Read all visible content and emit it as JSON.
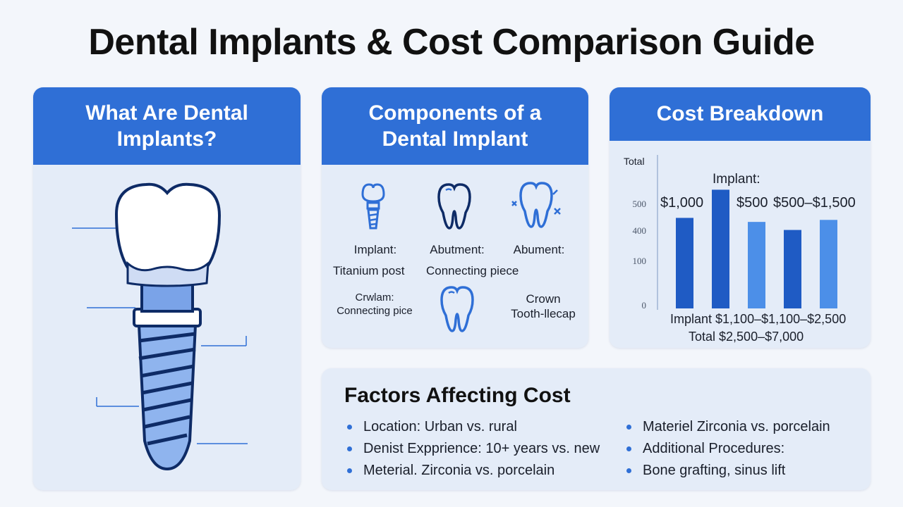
{
  "title": "Dental Implants & Cost Comparison Guide",
  "colors": {
    "accent": "#2f6fd6",
    "card_bg": "#e4ecf8",
    "bar_dark": "#1f5bc4",
    "bar_light": "#4c8fe8"
  },
  "card_what": {
    "header_line1": "What Are Dental",
    "header_line2": "Implants?"
  },
  "card_components": {
    "header_line1": "Components of a",
    "header_line2": "Dental Implant",
    "items": [
      {
        "icon": "implant-post-icon",
        "label": "Implant:",
        "sublabel": "Titanium post"
      },
      {
        "icon": "tooth-outline-icon",
        "label": "Abutment:",
        "sublabel": "Connecting piece"
      },
      {
        "icon": "tooth-sparkle-icon",
        "label": "Abument:",
        "sublabel": ""
      },
      {
        "icon": "",
        "label": "Crwlam:",
        "sublabel": "Connecting pice"
      },
      {
        "icon": "tooth-outline-icon",
        "label": "",
        "sublabel": ""
      },
      {
        "icon": "",
        "label": "Crown",
        "sublabel": "Tooth-llecap"
      }
    ]
  },
  "card_cost": {
    "header": "Cost Breakdown",
    "axis_label": "Total",
    "top_labels": {
      "implant": "Implant:",
      "left_value": "$1,000",
      "mid_value": "$500",
      "right_value": "$500–$1,500"
    },
    "bottom_line1": "Implant $1,100–$1,100–$2,500",
    "bottom_line2": "Total $2,500–$7,000"
  },
  "chart_data": {
    "type": "bar",
    "categories": [
      "",
      "",
      "",
      "",
      ""
    ],
    "values": [
      450,
      590,
      430,
      390,
      440
    ],
    "y_ticks": [
      "500",
      "400",
      "100",
      "0"
    ],
    "ylim": [
      0,
      700
    ],
    "grid": false
  },
  "card_factors": {
    "title": "Factors Affecting Cost",
    "left": [
      "Location: Urban vs. rural",
      "Denist Expprience: 10+ years vs. new",
      "Meterial. Zirconia vs. porcelain"
    ],
    "right": [
      "Materiel Zirconia vs. porcelain",
      "Additional Procedures:",
      "Bone grafting, sinus lift"
    ]
  }
}
